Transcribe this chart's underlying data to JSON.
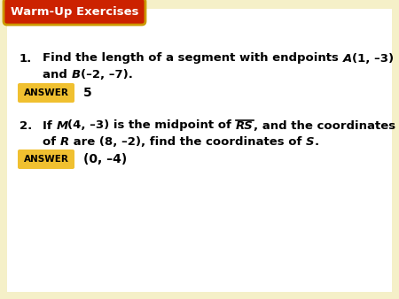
{
  "title": "Warm-Up Exercises",
  "title_bg": "#cc2200",
  "title_border": "#cc9900",
  "title_text_color": "#ffffff",
  "bg_color": "#f5f0c8",
  "white_color": "#ffffff",
  "answer_box_color": "#f0c030",
  "q1_answer": "5",
  "q2_answer": "(0, –4)"
}
